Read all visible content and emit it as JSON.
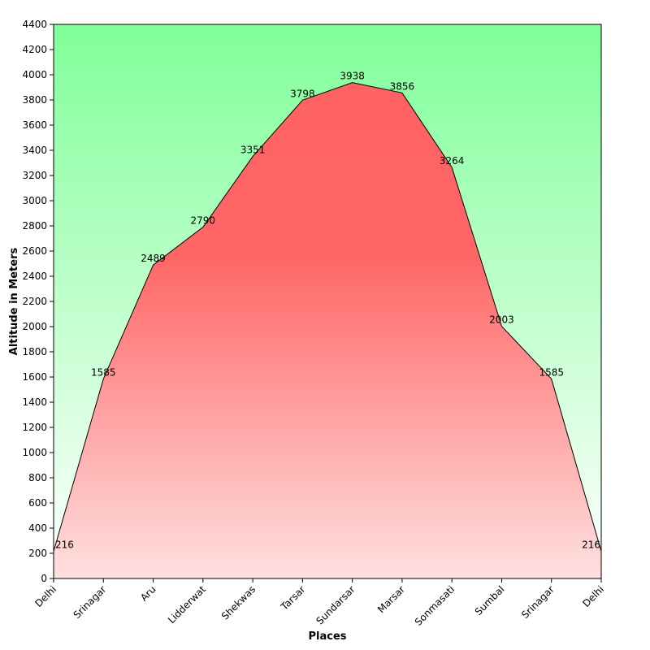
{
  "chart_data": {
    "type": "area",
    "title": "",
    "xlabel": "Places",
    "ylabel": "Altitude in Meters",
    "categories": [
      "Delhi",
      "Srinagar",
      "Aru",
      "Lidderwat",
      "Shekwas",
      "Tarsar",
      "Sundarsar",
      "Marsar",
      "Sonmasati",
      "Sumbal",
      "Srinagar",
      "Delhi"
    ],
    "series": [
      {
        "values": [
          216,
          1585,
          2489,
          2790,
          3351,
          3798,
          3938,
          3856,
          3264,
          2003,
          1585,
          216
        ],
        "data_labels": [
          "216",
          "1585",
          "2489",
          "2790",
          "3351",
          "3798",
          "3938",
          "3856",
          "3264",
          "2003",
          "1585",
          "216"
        ]
      }
    ],
    "ylim": [
      0,
      4400
    ],
    "yticks": [
      0,
      200,
      400,
      600,
      800,
      1000,
      1200,
      1400,
      1600,
      1800,
      2000,
      2200,
      2400,
      2600,
      2800,
      3000,
      3200,
      3400,
      3600,
      3800,
      4000,
      4200,
      4400
    ],
    "ytick_labels": [
      "0",
      "200",
      "400",
      "600",
      "800",
      "1000",
      "1200",
      "1400",
      "1600",
      "1800",
      "2000",
      "2200",
      "2400",
      "2600",
      "2800",
      "3000",
      "3200",
      "3400",
      "3600",
      "3800",
      "4000",
      "4200",
      "4400"
    ],
    "grid": false,
    "legend": "none",
    "colors": {
      "background_top": "#80ff99",
      "background_bottom": "#ffffff",
      "area_top": "#ff6060",
      "area_mid": "#ff6666",
      "area_bottom": "#ffe0e0",
      "line": "#000000"
    }
  }
}
